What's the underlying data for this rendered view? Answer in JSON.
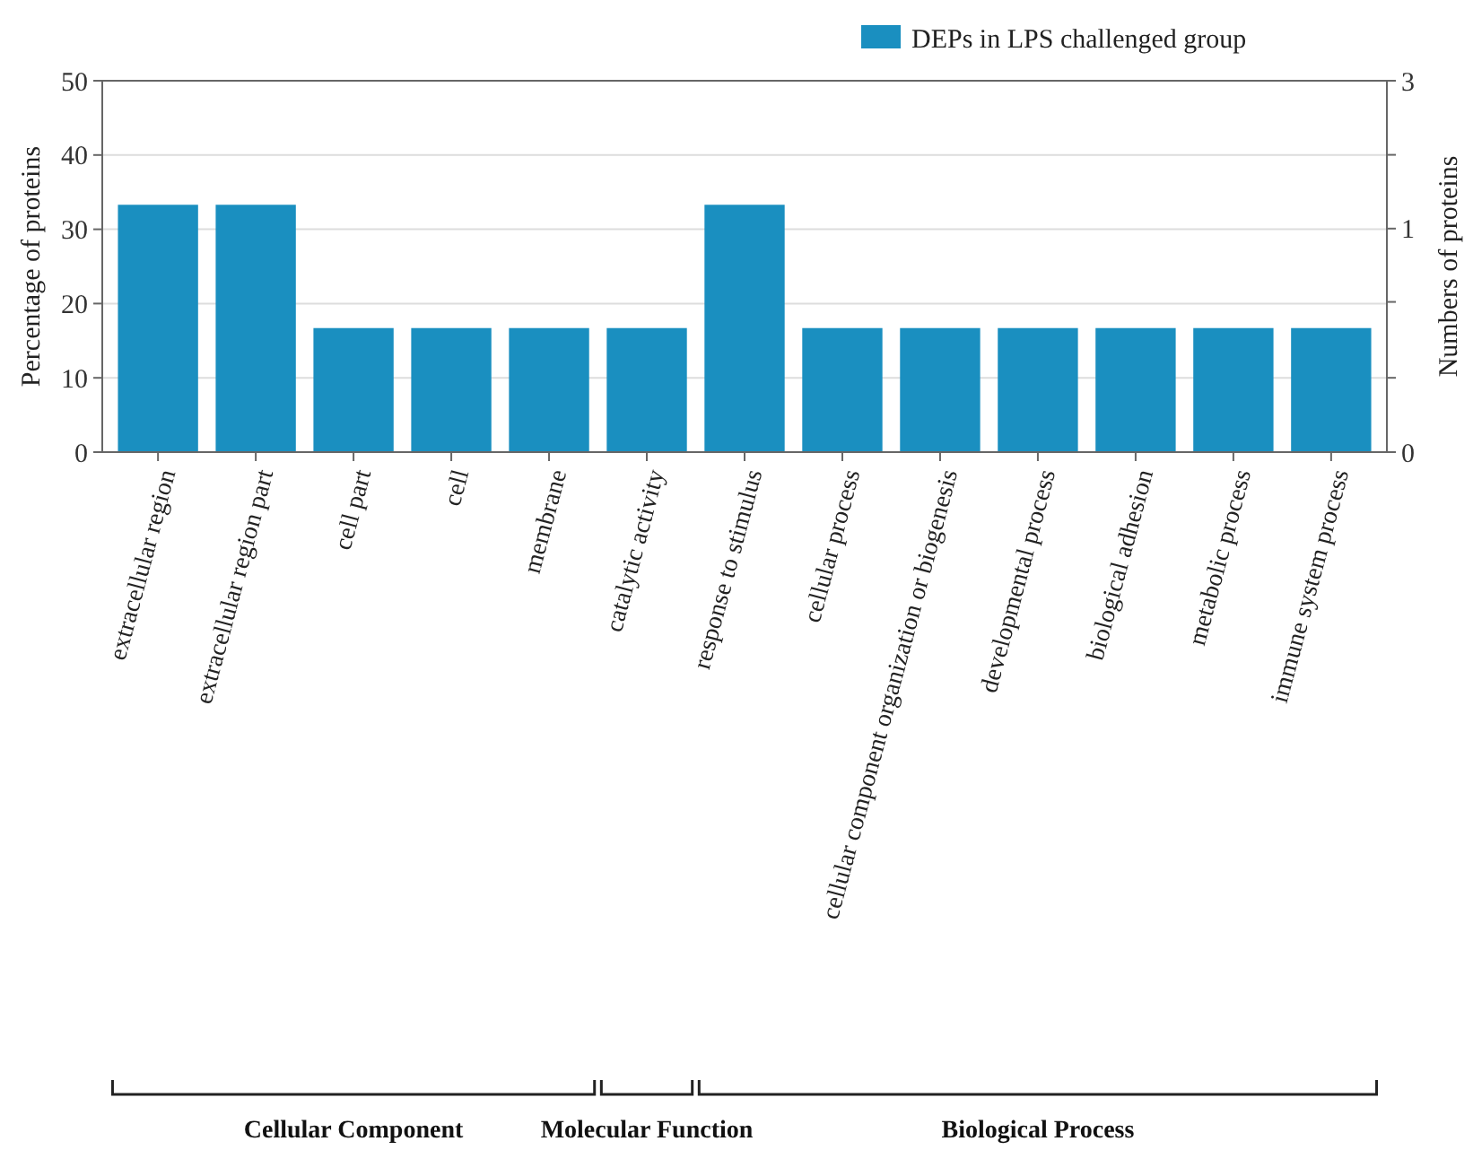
{
  "chart_data": {
    "type": "bar",
    "ylabel": "Percentage of proteins",
    "y2label": "Numbers of proteins",
    "categories": [
      "extracellular region",
      "extracellular region part",
      "cell part",
      "cell",
      "membrane",
      "catalytic activity",
      "response to stimulus",
      "cellular process",
      "cellular component organization or biogenesis",
      "developmental process",
      "biological adhesion",
      "metabolic process",
      "immune system process"
    ],
    "series": [
      {
        "name": "DEPs in LPS challenged group",
        "color": "#1a8fc0",
        "values": [
          33.3,
          33.3,
          16.7,
          16.7,
          16.7,
          16.7,
          33.3,
          16.7,
          16.7,
          16.7,
          16.7,
          16.7,
          16.7
        ]
      }
    ],
    "ylim": [
      0,
      50
    ],
    "yticks": [
      0,
      10,
      20,
      30,
      40,
      50
    ],
    "log": "y2",
    "y2lim": [
      0.19,
      3
    ],
    "y2ticks": [
      {
        "value": 0.19,
        "label": "0"
      },
      {
        "value": 0.33,
        "label": null
      },
      {
        "value": 0.58,
        "label": null
      },
      1,
      {
        "value": 1.73,
        "label": null
      },
      3
    ],
    "grid": "y",
    "legend": "top right",
    "annotations": [
      "Cellular Component",
      "Molecular Function",
      "Biological Process"
    ]
  }
}
